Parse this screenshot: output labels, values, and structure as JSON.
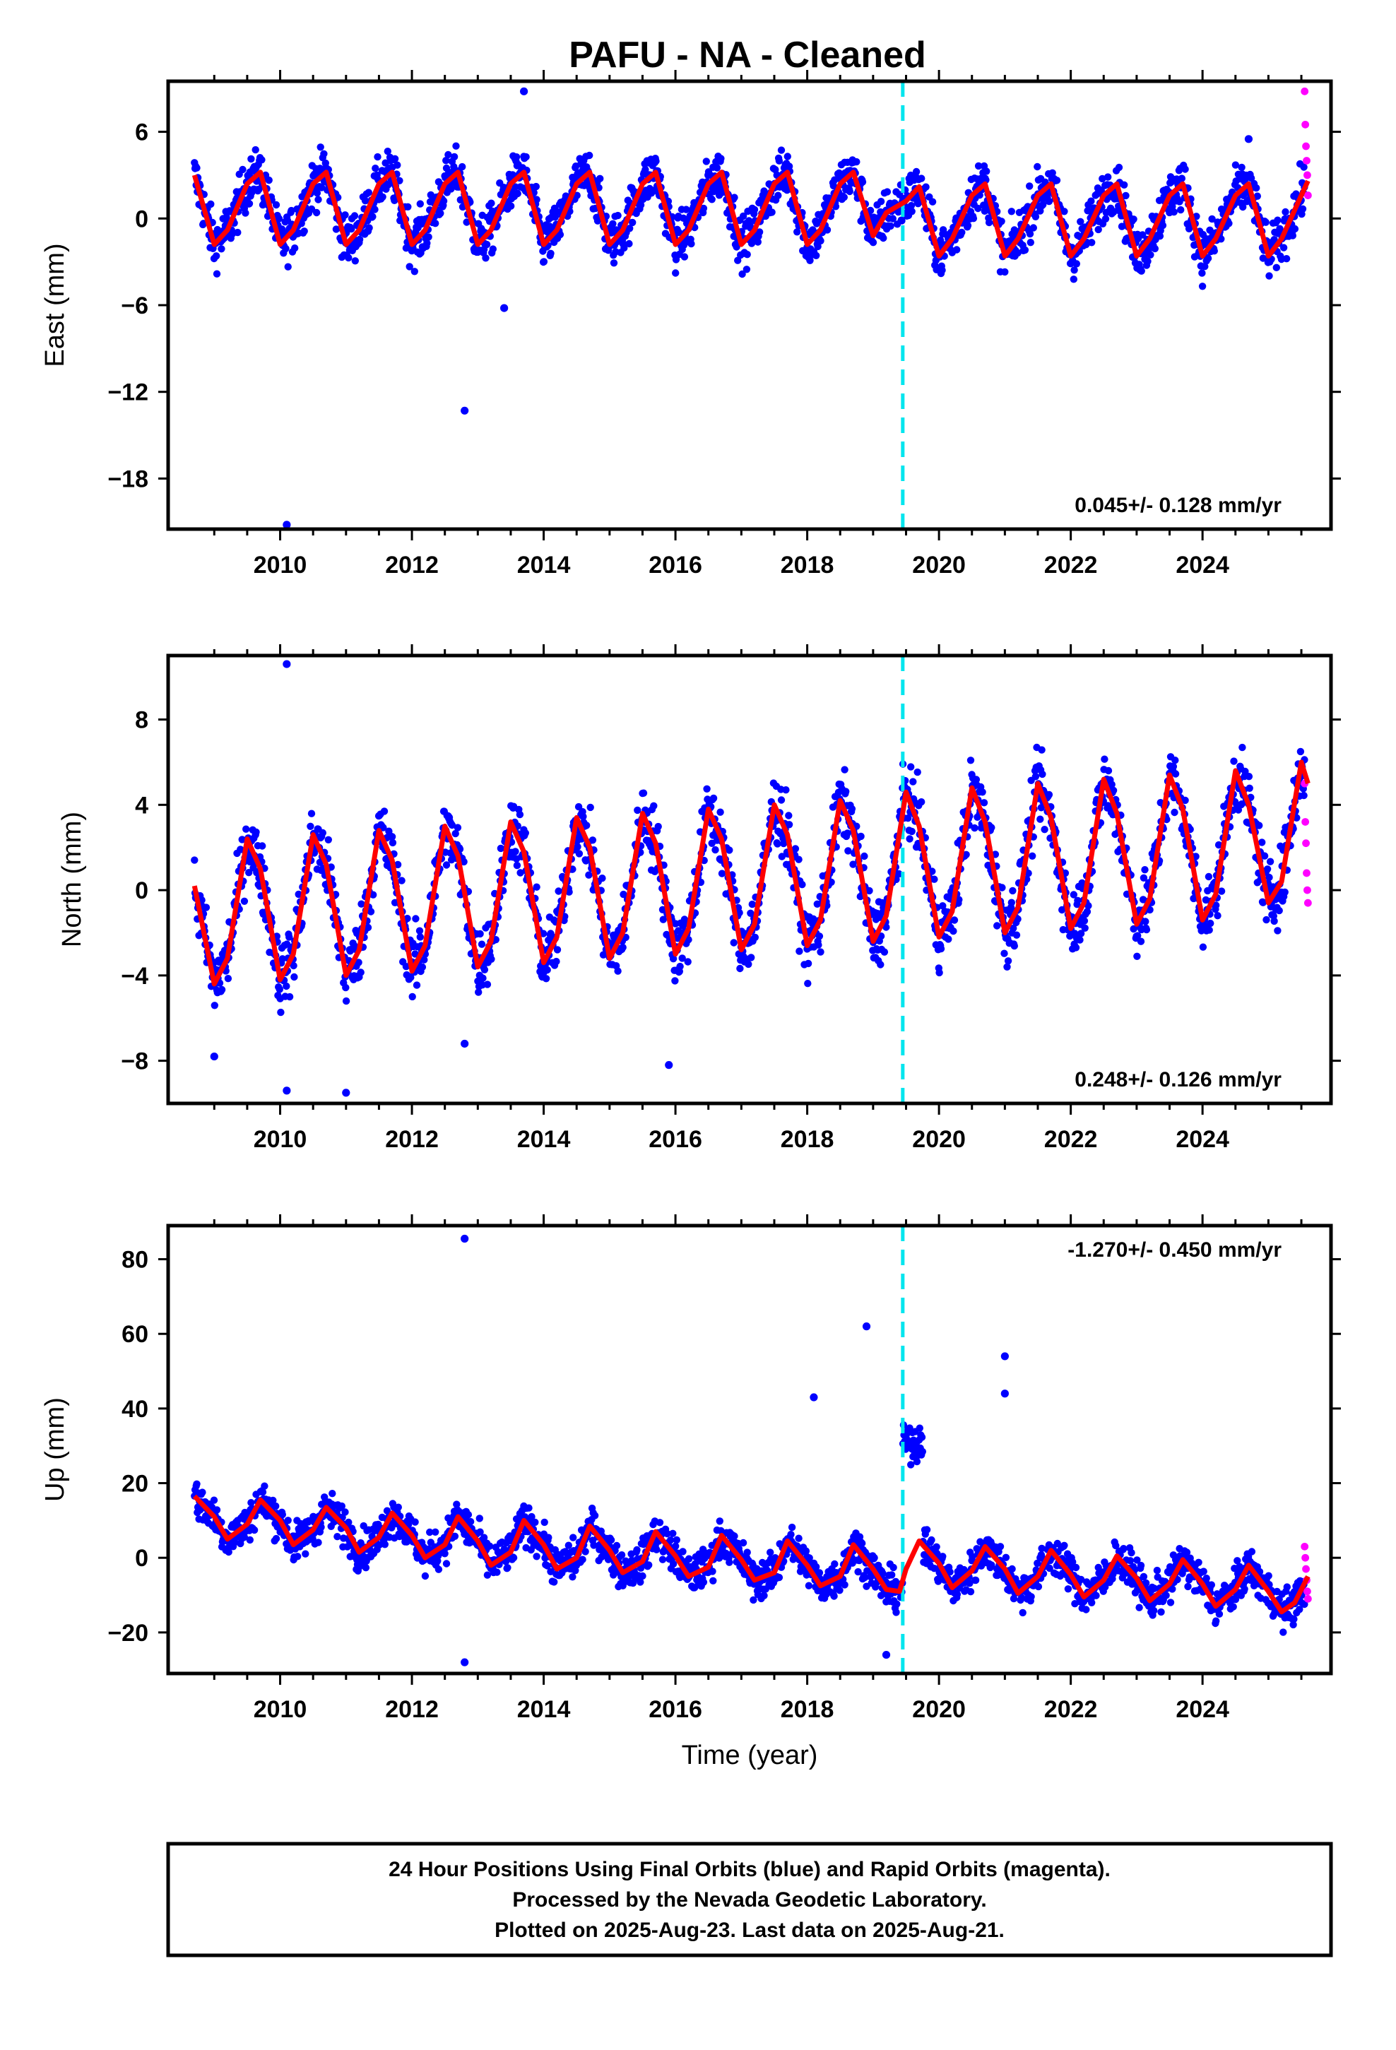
{
  "title": "PAFU  - NA - Cleaned",
  "colors": {
    "final": "#0000ff",
    "rapid": "#ff00ff",
    "model": "#ff0000",
    "event": "#00e5ee",
    "frame": "#000000"
  },
  "caption": {
    "line1": "24 Hour Positions Using Final Orbits (blue) and Rapid Orbits (magenta).",
    "line2": "Processed by the Nevada Geodetic Laboratory.",
    "line3": "Plotted on 2025-Aug-23. Last data on 2025-Aug-21."
  },
  "chart_data": [
    {
      "type": "scatter",
      "component": "East",
      "ylabel": "East (mm)",
      "xlabel": "",
      "xlim": [
        2008.3,
        2025.95
      ],
      "ylim": [
        -21.5,
        9.5
      ],
      "yticks": [
        -18,
        -12,
        -6,
        0,
        6
      ],
      "xticks": [
        2010,
        2012,
        2014,
        2016,
        2018,
        2020,
        2022,
        2024
      ],
      "grid": false,
      "rate": "0.045+/- 0.128 mm/yr",
      "rate_position": "bottom-right",
      "event_x": 2019.45,
      "model": {
        "x": [
          2008.7,
          2009.0,
          2009.2,
          2009.5,
          2009.7,
          2010.0,
          2010.2,
          2010.5,
          2010.7,
          2011.0,
          2011.2,
          2011.5,
          2011.7,
          2012.0,
          2012.2,
          2012.5,
          2012.7,
          2013.0,
          2013.2,
          2013.5,
          2013.7,
          2014.0,
          2014.2,
          2014.5,
          2014.7,
          2015.0,
          2015.2,
          2015.5,
          2015.7,
          2016.0,
          2016.2,
          2016.5,
          2016.7,
          2017.0,
          2017.2,
          2017.5,
          2017.7,
          2018.0,
          2018.2,
          2018.5,
          2018.7,
          2019.0,
          2019.2,
          2019.5,
          2019.7,
          2020.0,
          2020.2,
          2020.5,
          2020.7,
          2021.0,
          2021.2,
          2021.5,
          2021.7,
          2022.0,
          2022.2,
          2022.5,
          2022.7,
          2023.0,
          2023.2,
          2023.5,
          2023.7,
          2024.0,
          2024.2,
          2024.5,
          2024.7,
          2025.0,
          2025.2,
          2025.5,
          2025.6
        ],
        "y": [
          3.0,
          -1.8,
          -0.8,
          2.4,
          3.2,
          -1.8,
          -0.8,
          2.4,
          3.2,
          -1.8,
          -0.8,
          2.4,
          3.2,
          -1.8,
          -0.8,
          2.4,
          3.2,
          -1.8,
          -0.8,
          2.4,
          3.2,
          -1.8,
          -0.8,
          2.4,
          3.2,
          -1.8,
          -0.8,
          2.4,
          3.2,
          -1.8,
          -0.8,
          2.4,
          3.2,
          -1.8,
          -0.8,
          2.4,
          3.2,
          -1.8,
          -0.8,
          2.4,
          3.2,
          -1.2,
          0.4,
          1.2,
          2.2,
          -2.6,
          -1.4,
          1.6,
          2.4,
          -2.6,
          -1.4,
          1.6,
          2.4,
          -2.6,
          -1.4,
          1.6,
          2.4,
          -2.6,
          -1.4,
          1.6,
          2.4,
          -2.6,
          -1.4,
          1.6,
          2.4,
          -2.6,
          -1.4,
          1.6,
          2.6
        ]
      },
      "outliers": {
        "x": [
          2013.7,
          2012.8,
          2013.4,
          2010.1,
          2024.7
        ],
        "y": [
          8.8,
          -13.3,
          -6.2,
          -21.2,
          5.5
        ]
      },
      "rapid": {
        "x": [
          2025.55,
          2025.56,
          2025.57,
          2025.58,
          2025.59,
          2025.6
        ],
        "y": [
          8.8,
          6.5,
          5.0,
          4.0,
          3.0,
          1.6
        ]
      }
    },
    {
      "type": "scatter",
      "component": "North",
      "ylabel": "North (mm)",
      "xlabel": "",
      "xlim": [
        2008.3,
        2025.95
      ],
      "ylim": [
        -10.0,
        11.0
      ],
      "yticks": [
        -8,
        -4,
        0,
        4,
        8
      ],
      "xticks": [
        2010,
        2012,
        2014,
        2016,
        2018,
        2020,
        2022,
        2024
      ],
      "grid": false,
      "rate": "0.248+/- 0.126 mm/yr",
      "rate_position": "bottom-right",
      "event_x": 2019.45,
      "model": {
        "x": [
          2008.7,
          2009.0,
          2009.2,
          2009.5,
          2009.7,
          2010.0,
          2010.2,
          2010.5,
          2010.7,
          2011.0,
          2011.2,
          2011.5,
          2011.7,
          2012.0,
          2012.2,
          2012.5,
          2012.7,
          2013.0,
          2013.2,
          2013.5,
          2013.7,
          2014.0,
          2014.2,
          2014.5,
          2014.7,
          2015.0,
          2015.2,
          2015.5,
          2015.7,
          2016.0,
          2016.2,
          2016.5,
          2016.7,
          2017.0,
          2017.2,
          2017.5,
          2017.7,
          2018.0,
          2018.2,
          2018.5,
          2018.7,
          2019.0,
          2019.2,
          2019.5,
          2019.7,
          2020.0,
          2020.2,
          2020.5,
          2020.7,
          2021.0,
          2021.2,
          2021.5,
          2021.7,
          2022.0,
          2022.2,
          2022.5,
          2022.7,
          2023.0,
          2023.2,
          2023.5,
          2023.7,
          2024.0,
          2024.2,
          2024.5,
          2024.7,
          2025.0,
          2025.2,
          2025.5,
          2025.6
        ],
        "y": [
          0.2,
          -4.4,
          -3.2,
          2.4,
          1.0,
          -4.2,
          -3.0,
          2.6,
          1.2,
          -4.0,
          -2.8,
          2.8,
          1.4,
          -3.8,
          -2.6,
          3.0,
          1.6,
          -3.6,
          -2.4,
          3.2,
          1.8,
          -3.4,
          -2.2,
          3.4,
          2.0,
          -3.2,
          -2.0,
          3.6,
          2.2,
          -3.0,
          -1.8,
          3.8,
          2.4,
          -2.8,
          -1.6,
          4.0,
          2.6,
          -2.6,
          -1.4,
          4.2,
          2.8,
          -2.4,
          -1.2,
          4.6,
          3.0,
          -2.2,
          -1.0,
          4.8,
          3.2,
          -2.0,
          -0.8,
          5.0,
          3.4,
          -1.8,
          -0.6,
          5.2,
          3.6,
          -1.6,
          -0.4,
          5.4,
          3.8,
          -1.4,
          -0.2,
          5.6,
          4.0,
          -0.6,
          0.4,
          6.0,
          5.0
        ]
      },
      "outliers": {
        "x": [
          2010.1,
          2010.1,
          2011.0,
          2015.9,
          2009.0,
          2012.8
        ],
        "y": [
          10.6,
          -9.4,
          -9.5,
          -8.2,
          -7.8,
          -7.2
        ]
      },
      "rapid": {
        "x": [
          2025.55,
          2025.56,
          2025.57,
          2025.58,
          2025.59,
          2025.6
        ],
        "y": [
          5.0,
          3.2,
          2.2,
          0.8,
          0.0,
          -0.6
        ]
      }
    },
    {
      "type": "scatter",
      "component": "Up",
      "ylabel": "Up (mm)",
      "xlabel": "Time (year)",
      "xlim": [
        2008.3,
        2025.95
      ],
      "ylim": [
        -31.0,
        89.0
      ],
      "yticks": [
        -20,
        0,
        20,
        40,
        60,
        80
      ],
      "xticks": [
        2010,
        2012,
        2014,
        2016,
        2018,
        2020,
        2022,
        2024
      ],
      "grid": false,
      "rate": "-1.270+/- 0.450 mm/yr",
      "rate_position": "top-right",
      "event_x": 2019.45,
      "model": {
        "x": [
          2008.7,
          2009.0,
          2009.2,
          2009.5,
          2009.7,
          2010.0,
          2010.2,
          2010.5,
          2010.7,
          2011.0,
          2011.2,
          2011.5,
          2011.7,
          2012.0,
          2012.2,
          2012.5,
          2012.7,
          2013.0,
          2013.2,
          2013.5,
          2013.7,
          2014.0,
          2014.2,
          2014.5,
          2014.7,
          2015.0,
          2015.2,
          2015.5,
          2015.7,
          2016.0,
          2016.2,
          2016.5,
          2016.7,
          2017.0,
          2017.2,
          2017.5,
          2017.7,
          2018.0,
          2018.2,
          2018.5,
          2018.7,
          2019.0,
          2019.2,
          2019.4,
          2019.5,
          2019.7,
          2020.0,
          2020.2,
          2020.5,
          2020.7,
          2021.0,
          2021.2,
          2021.5,
          2021.7,
          2022.0,
          2022.2,
          2022.5,
          2022.7,
          2023.0,
          2023.2,
          2023.5,
          2023.7,
          2024.0,
          2024.2,
          2024.5,
          2024.7,
          2025.0,
          2025.2,
          2025.4,
          2025.6
        ],
        "y": [
          16.5,
          11.0,
          5.0,
          9.0,
          15.5,
          10.0,
          3.5,
          7.5,
          13.5,
          8.0,
          1.5,
          5.5,
          12.0,
          6.0,
          0.0,
          3.5,
          11.0,
          4.5,
          -2.0,
          1.5,
          10.0,
          3.5,
          -3.0,
          0.0,
          8.5,
          2.0,
          -4.0,
          -1.0,
          7.0,
          0.5,
          -5.0,
          -2.5,
          6.0,
          -0.5,
          -6.0,
          -4.0,
          4.5,
          -2.0,
          -7.5,
          -5.0,
          3.5,
          -3.0,
          -8.5,
          -9.0,
          -3.0,
          4.5,
          -1.5,
          -8.0,
          -3.5,
          3.0,
          -3.0,
          -9.5,
          -5.0,
          2.0,
          -4.5,
          -10.5,
          -6.0,
          0.5,
          -5.5,
          -11.5,
          -7.0,
          -0.5,
          -7.0,
          -13.0,
          -8.5,
          -2.0,
          -9.0,
          -14.5,
          -12.0,
          -5.0
        ]
      },
      "outliers": {
        "x": [
          2012.8,
          2018.9,
          2021.0,
          2021.0,
          2018.1,
          2012.8,
          2019.2
        ],
        "y": [
          85.5,
          62.0,
          54.0,
          44.0,
          43.0,
          -28.0,
          -26.0
        ]
      },
      "rapid": {
        "x": [
          2025.55,
          2025.56,
          2025.57,
          2025.58,
          2025.59,
          2025.6
        ],
        "y": [
          3.0,
          0.0,
          -3.0,
          -6.0,
          -9.0,
          -11.0
        ]
      }
    }
  ]
}
